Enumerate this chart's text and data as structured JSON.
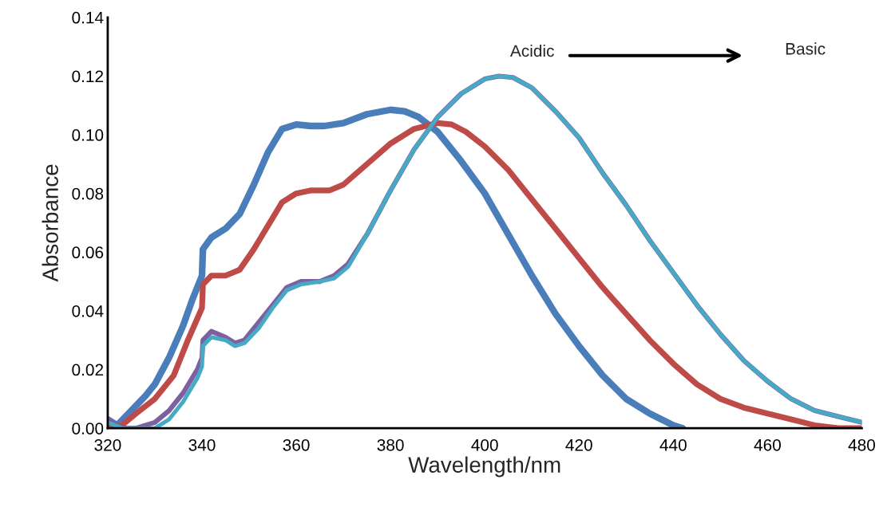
{
  "chart_data": {
    "type": "line",
    "xlabel": "Wavelength/nm",
    "ylabel": "Absorbance",
    "xlim": [
      320,
      480
    ],
    "xticks": [
      320,
      340,
      360,
      380,
      400,
      420,
      440,
      460,
      480
    ],
    "ylim": [
      0,
      0.14
    ],
    "yticks": [
      {
        "value": 0,
        "label": "0.00"
      },
      {
        "value": 0.02,
        "label": "0.02"
      },
      {
        "value": 0.04,
        "label": "0.04"
      },
      {
        "value": 0.06,
        "label": "0.06"
      },
      {
        "value": 0.08,
        "label": "0.08"
      },
      {
        "value": 0.1,
        "label": "0.10"
      },
      {
        "value": 0.12,
        "label": "0.12"
      },
      {
        "value": 0.14,
        "label": "0.14"
      }
    ],
    "grid": false,
    "legend": false,
    "marker": "none",
    "line_style": "solid",
    "annotations": [
      "Acidic",
      "Basic"
    ],
    "series": [
      {
        "color": "#4a7ebb",
        "x": [
          320,
          322,
          325,
          328,
          330,
          333,
          336,
          338,
          340,
          340.2,
          342,
          345,
          348,
          351,
          354,
          357,
          360,
          363,
          366,
          370,
          375,
          380,
          383,
          386,
          390,
          395,
          400,
          405,
          410,
          415,
          420,
          425,
          430,
          435,
          440,
          442
        ],
        "values": [
          0.003,
          0.001,
          0.006,
          0.011,
          0.015,
          0.024,
          0.035,
          0.044,
          0.052,
          0.061,
          0.065,
          0.068,
          0.073,
          0.083,
          0.094,
          0.102,
          0.1035,
          0.103,
          0.103,
          0.104,
          0.107,
          0.1085,
          0.108,
          0.106,
          0.101,
          0.091,
          0.08,
          0.066,
          0.052,
          0.039,
          0.028,
          0.018,
          0.01,
          0.005,
          0.001,
          0.0
        ]
      },
      {
        "color": "#be4b48",
        "x": [
          320,
          323,
          326,
          330,
          334,
          337,
          340,
          340.2,
          342,
          345,
          348,
          351,
          354,
          357,
          360,
          363,
          367,
          370,
          375,
          380,
          385,
          390,
          393,
          396,
          400,
          405,
          410,
          415,
          420,
          425,
          430,
          435,
          440,
          445,
          450,
          455,
          460,
          465,
          470,
          475,
          480
        ],
        "values": [
          0.0,
          0.001,
          0.005,
          0.01,
          0.018,
          0.03,
          0.041,
          0.049,
          0.052,
          0.052,
          0.054,
          0.061,
          0.069,
          0.077,
          0.08,
          0.081,
          0.081,
          0.083,
          0.09,
          0.097,
          0.102,
          0.104,
          0.1035,
          0.101,
          0.096,
          0.088,
          0.078,
          0.068,
          0.058,
          0.048,
          0.039,
          0.03,
          0.022,
          0.015,
          0.01,
          0.007,
          0.005,
          0.003,
          0.001,
          0.0,
          0.0
        ]
      },
      {
        "color": "#7d60a0",
        "x": [
          320,
          323,
          326,
          330,
          333,
          336,
          339,
          340,
          340.2,
          342,
          345,
          347,
          349,
          352,
          355,
          358,
          361,
          365,
          368,
          371,
          375,
          380,
          385,
          390,
          395,
          400,
          403,
          406,
          410,
          415,
          420,
          425,
          430,
          435,
          440,
          445,
          450,
          455,
          460,
          465,
          470,
          475,
          480
        ],
        "values": [
          0.003,
          0.0,
          0.0,
          0.002,
          0.006,
          0.012,
          0.02,
          0.024,
          0.03,
          0.033,
          0.031,
          0.029,
          0.03,
          0.036,
          0.042,
          0.048,
          0.05,
          0.05,
          0.052,
          0.056,
          0.066,
          0.081,
          0.095,
          0.106,
          0.114,
          0.119,
          0.12,
          0.1195,
          0.116,
          0.108,
          0.099,
          0.087,
          0.076,
          0.064,
          0.053,
          0.042,
          0.032,
          0.023,
          0.016,
          0.01,
          0.006,
          0.004,
          0.002
        ]
      },
      {
        "color": "#46aac5",
        "x": [
          320,
          323,
          330,
          333,
          336,
          339,
          340,
          340.2,
          342,
          345,
          347,
          349,
          352,
          355,
          358,
          361,
          365,
          368,
          371,
          375,
          380,
          385,
          390,
          395,
          400,
          403,
          406,
          410,
          415,
          420,
          425,
          430,
          435,
          440,
          445,
          450,
          455,
          460,
          465,
          470,
          475,
          480
        ],
        "values": [
          0.002,
          0.0,
          0.0,
          0.003,
          0.009,
          0.017,
          0.021,
          0.028,
          0.031,
          0.03,
          0.028,
          0.029,
          0.034,
          0.041,
          0.047,
          0.049,
          0.05,
          0.051,
          0.055,
          0.066,
          0.081,
          0.095,
          0.106,
          0.114,
          0.119,
          0.12,
          0.1195,
          0.116,
          0.108,
          0.099,
          0.087,
          0.076,
          0.064,
          0.053,
          0.042,
          0.032,
          0.023,
          0.016,
          0.01,
          0.006,
          0.004,
          0.002
        ]
      }
    ]
  }
}
